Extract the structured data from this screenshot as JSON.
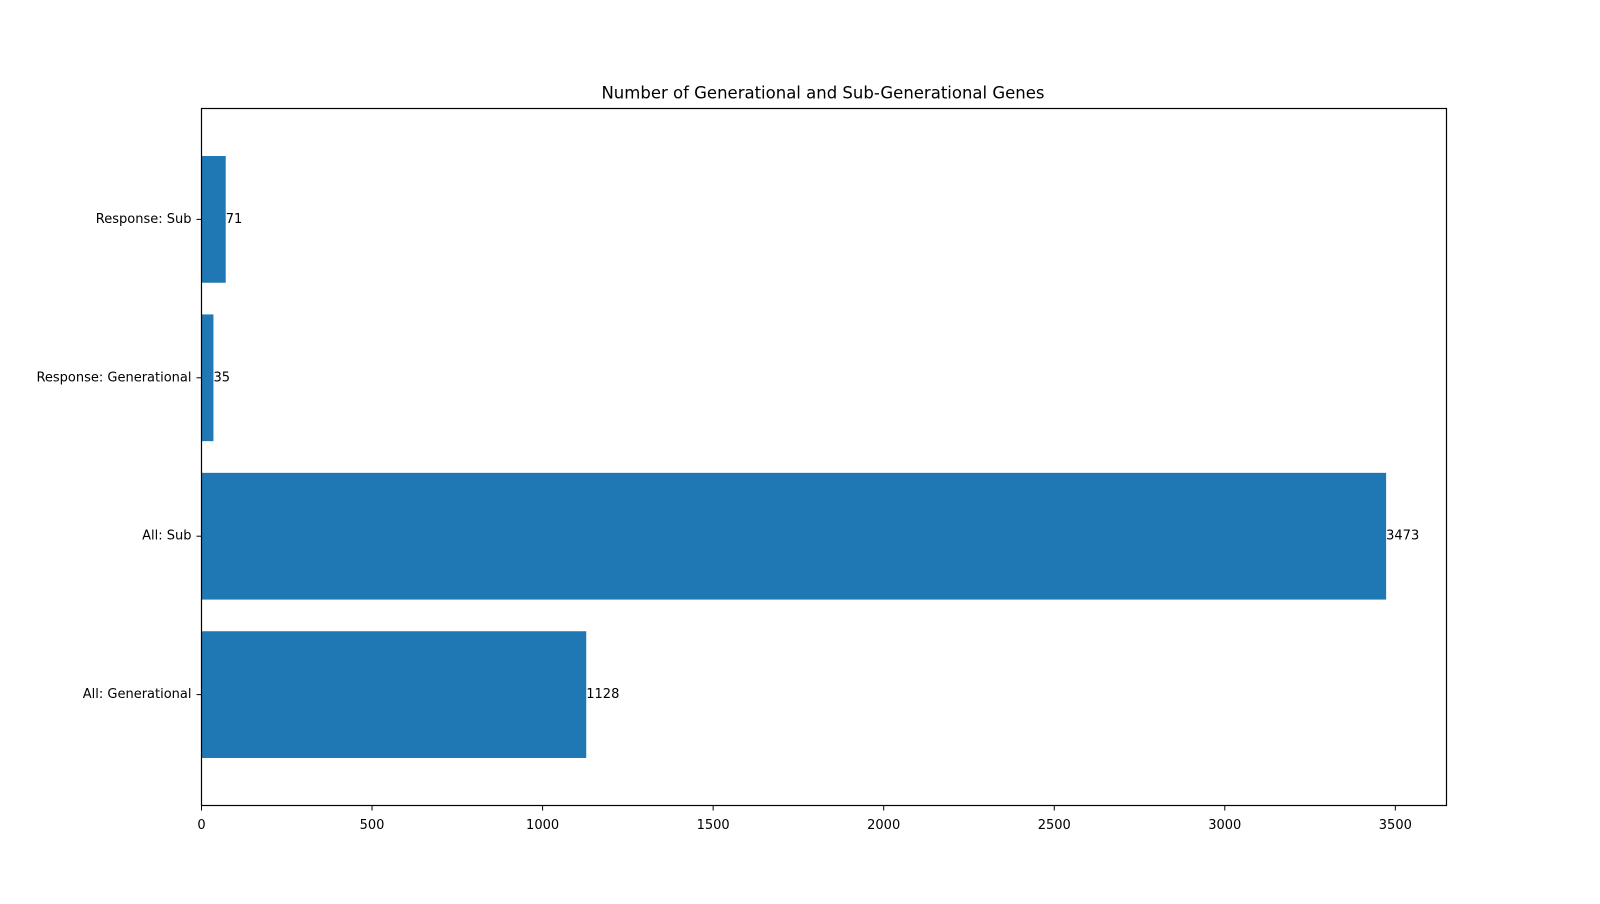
{
  "chart_data": {
    "type": "bar",
    "orientation": "horizontal",
    "title": "Number of Generational and Sub-Generational Genes",
    "xlabel": "",
    "ylabel": "",
    "categories": [
      "All: Generational",
      "All: Sub",
      "Response: Generational",
      "Response: Sub"
    ],
    "values": [
      1128,
      3473,
      35,
      71
    ],
    "value_labels": [
      "1128",
      "3473",
      "35",
      "71"
    ],
    "xlim": [
      0,
      3650
    ],
    "xticks": [
      0,
      500,
      1000,
      1500,
      2000,
      2500,
      3000,
      3500
    ],
    "xtick_labels": [
      "0",
      "500",
      "1000",
      "1500",
      "2000",
      "2500",
      "3000",
      "3500"
    ],
    "grid": false,
    "bar_color": "#1f77b4"
  }
}
